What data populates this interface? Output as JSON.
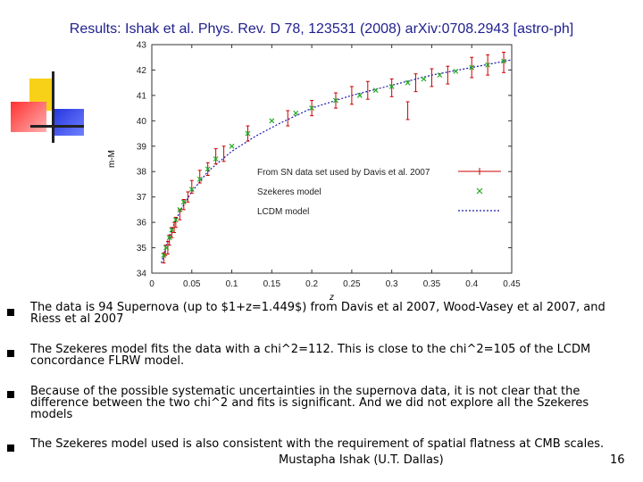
{
  "slide": {
    "title": "Results: Ishak et al. Phys. Rev. D 78, 123531 (2008) arXiv:0708.2943 [astro-ph]",
    "bullets": [
      "The data is 94 Supernova (up to $1+z=1.449$) from Davis et al 2007, Wood-Vasey et al 2007, and Riess et al 2007",
      "The Szekeres model fits the data with a chi^2=112. This is close to the chi^2=105 of the LCDM concordance FLRW model.",
      " Because of the possible systematic uncertainties in the supernova data, it is not clear that the difference between the two chi^2 and fits is significant. And we did not explore all the Szekeres models",
      "The Szekeres model used is also consistent with the requirement of spatial flatness at CMB scales."
    ],
    "footer": "Mustapha Ishak (U.T. Dallas)",
    "page_number": "16"
  },
  "chart_data": {
    "type": "scatter",
    "xlabel": "z",
    "ylabel": "m-M",
    "xlim": [
      0,
      0.45
    ],
    "ylim": [
      34,
      43
    ],
    "xticks": [
      "0",
      "0.05",
      "0.1",
      "0.15",
      "0.2",
      "0.25",
      "0.3",
      "0.35",
      "0.4",
      "0.45"
    ],
    "yticks": [
      "34",
      "35",
      "36",
      "37",
      "38",
      "39",
      "40",
      "41",
      "42",
      "43"
    ],
    "legend_position": "right-middle",
    "series": [
      {
        "name": "From SN data set used by Davis et al. 2007",
        "style": "red error bars",
        "color": "#cc0000",
        "x": [
          0.015,
          0.017,
          0.02,
          0.022,
          0.025,
          0.028,
          0.03,
          0.035,
          0.04,
          0.045,
          0.05,
          0.06,
          0.07,
          0.08,
          0.09,
          0.12,
          0.17,
          0.2,
          0.23,
          0.25,
          0.27,
          0.3,
          0.32,
          0.33,
          0.35,
          0.37,
          0.4,
          0.42,
          0.44
        ],
        "y": [
          34.6,
          34.9,
          35.0,
          35.3,
          35.6,
          35.8,
          36.0,
          36.3,
          36.7,
          37.0,
          37.4,
          37.8,
          38.1,
          38.6,
          38.7,
          39.5,
          40.1,
          40.5,
          40.8,
          41.0,
          41.2,
          41.3,
          40.4,
          41.5,
          41.7,
          41.8,
          42.1,
          42.2,
          42.3
        ],
        "err": [
          0.2,
          0.2,
          0.25,
          0.2,
          0.2,
          0.2,
          0.2,
          0.2,
          0.2,
          0.2,
          0.25,
          0.25,
          0.25,
          0.3,
          0.3,
          0.3,
          0.3,
          0.3,
          0.3,
          0.35,
          0.35,
          0.35,
          0.35,
          0.35,
          0.35,
          0.35,
          0.4,
          0.4,
          0.4
        ]
      },
      {
        "name": "Szekeres model",
        "style": "green x markers",
        "color": "#22aa22",
        "x": [
          0.015,
          0.018,
          0.022,
          0.025,
          0.03,
          0.035,
          0.04,
          0.05,
          0.06,
          0.07,
          0.08,
          0.1,
          0.12,
          0.15,
          0.18,
          0.2,
          0.23,
          0.26,
          0.28,
          0.3,
          0.32,
          0.34,
          0.36,
          0.38,
          0.4,
          0.42,
          0.44
        ],
        "y": [
          34.7,
          35.0,
          35.4,
          35.7,
          36.1,
          36.5,
          36.8,
          37.3,
          37.7,
          38.1,
          38.5,
          39.0,
          39.5,
          40.0,
          40.3,
          40.5,
          40.8,
          41.0,
          41.2,
          41.35,
          41.5,
          41.65,
          41.8,
          41.95,
          42.1,
          42.2,
          42.35
        ]
      },
      {
        "name": "LCDM model",
        "style": "blue dotted line",
        "color": "#1a1aaa",
        "x": [
          0.012,
          0.02,
          0.03,
          0.04,
          0.05,
          0.07,
          0.1,
          0.13,
          0.16,
          0.2,
          0.25,
          0.3,
          0.35,
          0.4,
          0.45
        ],
        "y": [
          34.4,
          35.3,
          36.1,
          36.7,
          37.2,
          38.0,
          38.8,
          39.4,
          39.9,
          40.5,
          41.0,
          41.4,
          41.8,
          42.1,
          42.4
        ]
      }
    ]
  }
}
